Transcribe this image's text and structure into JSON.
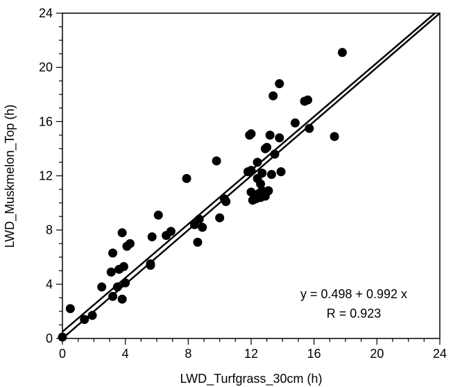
{
  "chart_data": {
    "type": "scatter",
    "title": "",
    "xlabel": "LWD_Turfgrass_30cm (h)",
    "ylabel": "LWD_Muskmelon_Top (h)",
    "xlim": [
      0,
      24
    ],
    "ylim": [
      0,
      24
    ],
    "xticks": [
      "0",
      "4",
      "8",
      "12",
      "16",
      "20",
      "24"
    ],
    "yticks": [
      "0",
      "4",
      "8",
      "12",
      "16",
      "20",
      "24"
    ],
    "grid": false,
    "series": [
      {
        "points": [
          [
            0.0,
            0.1
          ],
          [
            0.5,
            2.2
          ],
          [
            1.4,
            1.4
          ],
          [
            1.9,
            1.7
          ],
          [
            2.5,
            3.8
          ],
          [
            3.1,
            4.9
          ],
          [
            3.2,
            6.3
          ],
          [
            3.2,
            3.1
          ],
          [
            3.5,
            3.8
          ],
          [
            3.6,
            5.1
          ],
          [
            3.8,
            7.8
          ],
          [
            3.8,
            2.9
          ],
          [
            3.9,
            5.3
          ],
          [
            4.0,
            4.1
          ],
          [
            4.1,
            6.8
          ],
          [
            4.3,
            7.0
          ],
          [
            5.6,
            5.4
          ],
          [
            5.6,
            5.5
          ],
          [
            5.7,
            7.5
          ],
          [
            6.1,
            9.1
          ],
          [
            6.6,
            7.6
          ],
          [
            6.9,
            7.9
          ],
          [
            7.9,
            11.8
          ],
          [
            8.4,
            8.4
          ],
          [
            8.6,
            7.1
          ],
          [
            8.7,
            8.8
          ],
          [
            8.9,
            8.2
          ],
          [
            9.8,
            13.1
          ],
          [
            10.0,
            8.9
          ],
          [
            10.3,
            10.3
          ],
          [
            10.4,
            10.1
          ],
          [
            11.8,
            12.3
          ],
          [
            11.9,
            15.0
          ],
          [
            12.0,
            15.1
          ],
          [
            12.0,
            12.4
          ],
          [
            12.0,
            10.8
          ],
          [
            12.1,
            10.2
          ],
          [
            12.3,
            10.3
          ],
          [
            12.4,
            13.0
          ],
          [
            12.4,
            11.8
          ],
          [
            12.5,
            10.7
          ],
          [
            12.6,
            11.4
          ],
          [
            12.6,
            10.4
          ],
          [
            12.7,
            12.2
          ],
          [
            12.7,
            10.9
          ],
          [
            12.9,
            14.0
          ],
          [
            12.9,
            10.5
          ],
          [
            13.0,
            14.1
          ],
          [
            13.1,
            10.9
          ],
          [
            13.2,
            15.0
          ],
          [
            13.3,
            12.1
          ],
          [
            13.4,
            17.9
          ],
          [
            13.5,
            13.6
          ],
          [
            13.8,
            14.8
          ],
          [
            13.8,
            18.8
          ],
          [
            13.9,
            12.3
          ],
          [
            14.8,
            15.9
          ],
          [
            15.4,
            17.5
          ],
          [
            15.6,
            17.6
          ],
          [
            15.7,
            15.5
          ],
          [
            17.3,
            14.9
          ],
          [
            17.8,
            21.1
          ]
        ]
      }
    ],
    "lines": [
      {
        "kind": "1:1 line",
        "intercept": 0,
        "slope": 1
      },
      {
        "kind": "regression",
        "intercept": 0.498,
        "slope": 0.992
      }
    ],
    "annotations": [
      "y = 0.498 + 0.992 x",
      "R = 0.923"
    ]
  }
}
